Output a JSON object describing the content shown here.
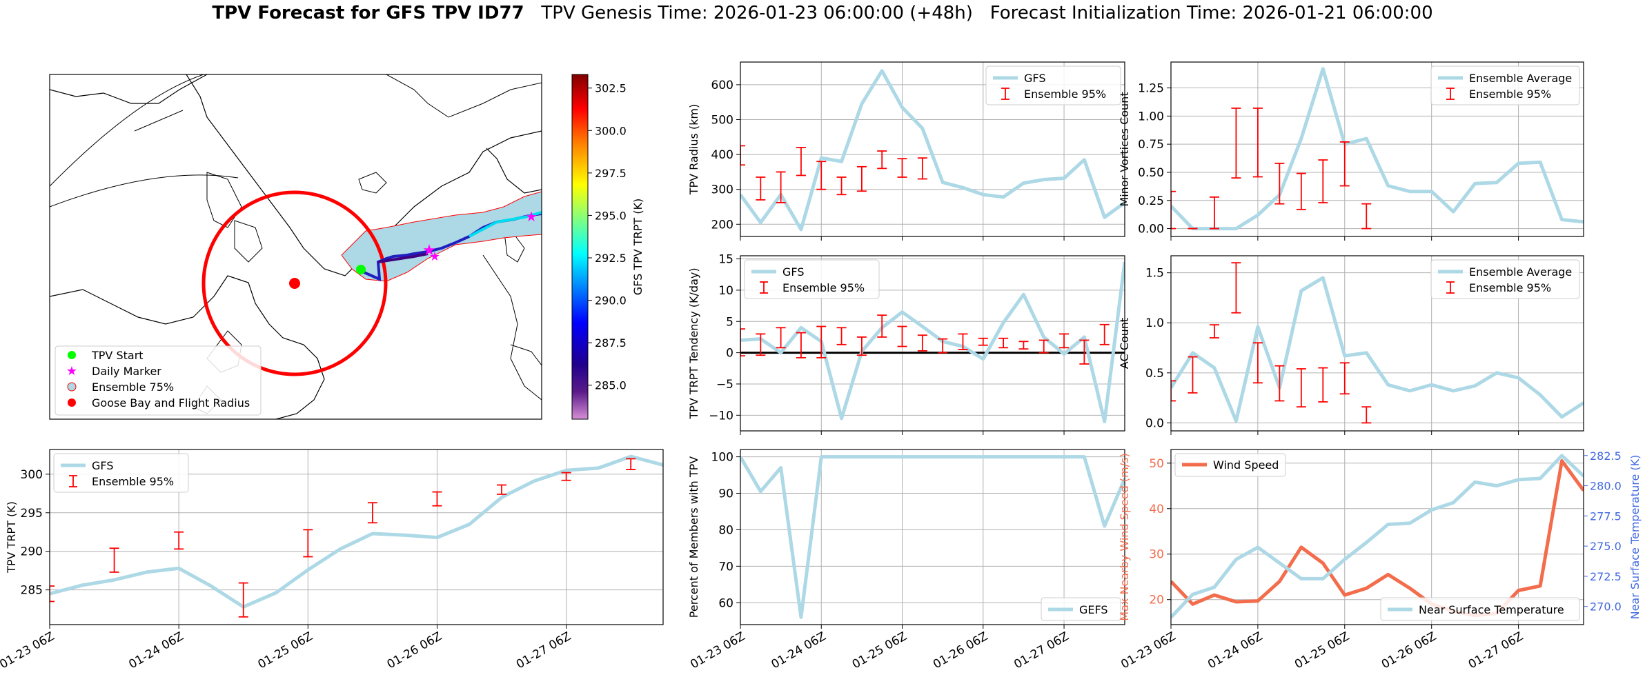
{
  "figure": {
    "title_bold": "TPV Forecast for GFS TPV ID77",
    "title_genesis": "TPV Genesis Time: 2026-01-23 06:00:00 (+48h)",
    "title_init": "Forecast Initialization Time: 2026-01-21 06:00:00"
  },
  "colors": {
    "gfs_line": "#add8e6",
    "error_bar": "#ff0000",
    "wind_line": "#f36c4c",
    "temp_axis": "#4169e1",
    "grid": "#b0b0b0",
    "ocean": "#add8e6",
    "flight_circle": "#ff0000",
    "start_marker": "#00ff00",
    "daily_marker": "#ff00ff"
  },
  "map": {
    "legend": [
      {
        "label": "TPV Start",
        "icon": "green-circle"
      },
      {
        "label": "Daily Marker",
        "icon": "magenta-star"
      },
      {
        "label": "Ensemble 75%",
        "icon": "light-blue-circle"
      },
      {
        "label": "Goose Bay and Flight Radius",
        "icon": "red-circle"
      }
    ],
    "colorbar": {
      "label": "GFS TPV TRPT (K)",
      "min": 283,
      "max": 303.3,
      "ticks": [
        "285.0",
        "287.5",
        "290.0",
        "292.5",
        "295.0",
        "297.5",
        "300.0",
        "302.5"
      ],
      "tick_values": [
        285.0,
        287.5,
        290.0,
        292.5,
        295.0,
        297.5,
        300.0,
        302.5
      ]
    }
  },
  "chart_data": [
    {
      "id": "trpt",
      "type": "line",
      "ylabel": "TPV TRPT (K)",
      "xlim": [
        0,
        4.75
      ],
      "ylim": [
        280.5,
        303.2
      ],
      "yticks": [
        285,
        290,
        295,
        300
      ],
      "ytick_labels": [
        "285",
        "290",
        "295",
        "300"
      ],
      "xticks": [
        0,
        1,
        2,
        3,
        4
      ],
      "xtick_labels": [
        "01-23 06Z",
        "01-24 06Z",
        "01-25 06Z",
        "01-26 06Z",
        "01-27 06Z"
      ],
      "legend": [
        "GFS",
        "Ensemble 95%"
      ],
      "series": [
        {
          "name": "GFS",
          "x": [
            0,
            0.25,
            0.5,
            0.75,
            1,
            1.25,
            1.5,
            1.75,
            2,
            2.25,
            2.5,
            2.75,
            3,
            3.25,
            3.5,
            3.75,
            4,
            4.25,
            4.5,
            4.75
          ],
          "values": [
            284.5,
            285.6,
            286.3,
            287.3,
            287.8,
            285.5,
            282.8,
            284.6,
            287.6,
            290.3,
            292.3,
            292.1,
            291.8,
            293.5,
            297.0,
            299.1,
            300.5,
            300.8,
            302.3,
            301.2
          ]
        }
      ],
      "errorbars": [
        {
          "x": 0,
          "low": 283.5,
          "high": 285.5
        },
        {
          "x": 0.5,
          "low": 287.3,
          "high": 290.4
        },
        {
          "x": 1,
          "low": 290.3,
          "high": 292.5
        },
        {
          "x": 1.5,
          "low": 281.5,
          "high": 285.9
        },
        {
          "x": 2,
          "low": 289.3,
          "high": 292.8
        },
        {
          "x": 2.5,
          "low": 293.7,
          "high": 296.3
        },
        {
          "x": 3,
          "low": 295.9,
          "high": 297.7
        },
        {
          "x": 3.5,
          "low": 297.4,
          "high": 298.6
        },
        {
          "x": 4,
          "low": 299.2,
          "high": 300.2
        },
        {
          "x": 4.5,
          "low": 300.6,
          "high": 302.0
        }
      ]
    },
    {
      "id": "radius",
      "type": "line",
      "ylabel": "TPV Radius (km)",
      "xlim": [
        0,
        4.75
      ],
      "ylim": [
        165,
        665
      ],
      "yticks": [
        200,
        300,
        400,
        500,
        600
      ],
      "ytick_labels": [
        "200",
        "300",
        "400",
        "500",
        "600"
      ],
      "legend": [
        "GFS",
        "Ensemble 95%"
      ],
      "series": [
        {
          "name": "GFS",
          "x": [
            0,
            0.25,
            0.5,
            0.75,
            1,
            1.25,
            1.5,
            1.75,
            2,
            2.25,
            2.5,
            2.75,
            3,
            3.25,
            3.5,
            3.75,
            4,
            4.25,
            4.5,
            4.75
          ],
          "values": [
            285,
            205,
            285,
            185,
            390,
            380,
            545,
            640,
            535,
            475,
            320,
            305,
            285,
            278,
            318,
            328,
            332,
            385,
            220,
            262
          ]
        }
      ],
      "errorbars": [
        {
          "x": 0,
          "low": 370,
          "high": 425
        },
        {
          "x": 0.25,
          "low": 270,
          "high": 335
        },
        {
          "x": 0.5,
          "low": 262,
          "high": 350
        },
        {
          "x": 0.75,
          "low": 340,
          "high": 420
        },
        {
          "x": 1,
          "low": 300,
          "high": 380
        },
        {
          "x": 1.25,
          "low": 285,
          "high": 335
        },
        {
          "x": 1.5,
          "low": 295,
          "high": 365
        },
        {
          "x": 1.75,
          "low": 360,
          "high": 410
        },
        {
          "x": 2,
          "low": 335,
          "high": 388
        },
        {
          "x": 2.25,
          "low": 330,
          "high": 390
        }
      ]
    },
    {
      "id": "minor",
      "type": "line",
      "ylabel": "Minor Vortices Count",
      "xlim": [
        0,
        4.75
      ],
      "ylim": [
        -0.07,
        1.48
      ],
      "yticks": [
        0.0,
        0.25,
        0.5,
        0.75,
        1.0,
        1.25
      ],
      "ytick_labels": [
        "0.00",
        "0.25",
        "0.50",
        "0.75",
        "1.00",
        "1.25"
      ],
      "legend": [
        "Ensemble Average",
        "Ensemble 95%"
      ],
      "series": [
        {
          "name": "Ensemble Average",
          "x": [
            0,
            0.25,
            0.5,
            0.75,
            1,
            1.25,
            1.5,
            1.75,
            2,
            2.25,
            2.5,
            2.75,
            3,
            3.25,
            3.5,
            3.75,
            4,
            4.25,
            4.5,
            4.75
          ],
          "values": [
            0.2,
            0.0,
            0.0,
            0.0,
            0.12,
            0.3,
            0.8,
            1.42,
            0.75,
            0.8,
            0.38,
            0.33,
            0.33,
            0.15,
            0.4,
            0.41,
            0.58,
            0.59,
            0.08,
            0.06
          ]
        }
      ],
      "errorbars": [
        {
          "x": 0,
          "low": 0.0,
          "high": 0.33
        },
        {
          "x": 0.25,
          "low": 0.0,
          "high": 0.0
        },
        {
          "x": 0.5,
          "low": 0.0,
          "high": 0.28
        },
        {
          "x": 0.75,
          "low": 0.45,
          "high": 1.07
        },
        {
          "x": 1,
          "low": 0.46,
          "high": 1.07
        },
        {
          "x": 1.25,
          "low": 0.22,
          "high": 0.58
        },
        {
          "x": 1.5,
          "low": 0.17,
          "high": 0.49
        },
        {
          "x": 1.75,
          "low": 0.23,
          "high": 0.61
        },
        {
          "x": 2,
          "low": 0.38,
          "high": 0.77
        },
        {
          "x": 2.25,
          "low": 0.0,
          "high": 0.22
        }
      ]
    },
    {
      "id": "tendency",
      "type": "line",
      "ylabel": "TPV TRPT Tendency (K/day)",
      "xlim": [
        0,
        4.75
      ],
      "ylim": [
        -12.5,
        15.5
      ],
      "yticks": [
        -10,
        -5,
        0,
        5,
        10,
        15
      ],
      "ytick_labels": [
        "−10",
        "−5",
        "0",
        "5",
        "10",
        "15"
      ],
      "legend": [
        "GFS",
        "Ensemble 95%"
      ],
      "series": [
        {
          "name": "GFS",
          "x": [
            0,
            0.25,
            0.5,
            0.75,
            1,
            1.25,
            1.5,
            1.75,
            2,
            2.25,
            2.5,
            2.75,
            3,
            3.25,
            3.5,
            3.75,
            4,
            4.25,
            4.5,
            4.75
          ],
          "values": [
            2,
            2.2,
            0,
            4,
            1.8,
            -10.5,
            0.2,
            4,
            6.5,
            4.2,
            1.8,
            1,
            -1,
            4.8,
            9.3,
            2.5,
            -0.2,
            2.5,
            -11,
            14.5
          ]
        }
      ],
      "errorbars": [
        {
          "x": 0,
          "low": -0.5,
          "high": 3.8
        },
        {
          "x": 0.25,
          "low": -0.4,
          "high": 3.0
        },
        {
          "x": 0.5,
          "low": 0.8,
          "high": 4.0
        },
        {
          "x": 0.75,
          "low": -0.8,
          "high": 3.2
        },
        {
          "x": 1,
          "low": -0.8,
          "high": 4.2
        },
        {
          "x": 1.25,
          "low": 1.3,
          "high": 4.0
        },
        {
          "x": 1.5,
          "low": -0.4,
          "high": 2.5
        },
        {
          "x": 1.75,
          "low": 2.5,
          "high": 6.0
        },
        {
          "x": 2,
          "low": 1.0,
          "high": 4.2
        },
        {
          "x": 2.25,
          "low": 0.3,
          "high": 2.8
        },
        {
          "x": 2.5,
          "low": 0.0,
          "high": 2.2
        },
        {
          "x": 2.75,
          "low": 0.5,
          "high": 3.0
        },
        {
          "x": 3,
          "low": 1.2,
          "high": 2.3
        },
        {
          "x": 3.25,
          "low": 0.8,
          "high": 2.3
        },
        {
          "x": 3.5,
          "low": 0.6,
          "high": 1.8
        },
        {
          "x": 3.75,
          "low": 0.0,
          "high": 2.0
        },
        {
          "x": 4,
          "low": 0.8,
          "high": 3.0
        },
        {
          "x": 4.25,
          "low": -1.8,
          "high": 2.0
        },
        {
          "x": 4.5,
          "low": 1.3,
          "high": 4.5
        }
      ],
      "hline": 0
    },
    {
      "id": "ac",
      "type": "line",
      "ylabel": "AC Count",
      "xlim": [
        0,
        4.75
      ],
      "ylim": [
        -0.08,
        1.67
      ],
      "yticks": [
        0.0,
        0.5,
        1.0,
        1.5
      ],
      "ytick_labels": [
        "0.0",
        "0.5",
        "1.0",
        "1.5"
      ],
      "legend": [
        "Ensemble Average",
        "Ensemble 95%"
      ],
      "series": [
        {
          "name": "Ensemble Average",
          "x": [
            0,
            0.25,
            0.5,
            0.75,
            1,
            1.25,
            1.5,
            1.75,
            2,
            2.25,
            2.5,
            2.75,
            3,
            3.25,
            3.5,
            3.75,
            4,
            4.25,
            4.5,
            4.75
          ],
          "values": [
            0.35,
            0.7,
            0.55,
            0.02,
            0.96,
            0.35,
            1.32,
            1.45,
            0.67,
            0.7,
            0.38,
            0.32,
            0.38,
            0.32,
            0.37,
            0.5,
            0.45,
            0.28,
            0.06,
            0.2
          ]
        }
      ],
      "errorbars": [
        {
          "x": 0,
          "low": 0.22,
          "high": 0.42
        },
        {
          "x": 0.25,
          "low": 0.3,
          "high": 0.66
        },
        {
          "x": 0.5,
          "low": 0.85,
          "high": 0.98
        },
        {
          "x": 0.75,
          "low": 1.1,
          "high": 1.6
        },
        {
          "x": 1,
          "low": 0.4,
          "high": 0.8
        },
        {
          "x": 1.25,
          "low": 0.22,
          "high": 0.57
        },
        {
          "x": 1.5,
          "low": 0.16,
          "high": 0.54
        },
        {
          "x": 1.75,
          "low": 0.21,
          "high": 0.55
        },
        {
          "x": 2,
          "low": 0.29,
          "high": 0.6
        },
        {
          "x": 2.25,
          "low": 0.0,
          "high": 0.16
        }
      ]
    },
    {
      "id": "members",
      "type": "line",
      "ylabel": "Percent of Members with TPV",
      "xlim": [
        0,
        4.75
      ],
      "ylim": [
        54,
        102
      ],
      "yticks": [
        60,
        70,
        80,
        90,
        100
      ],
      "ytick_labels": [
        "60",
        "70",
        "80",
        "90",
        "100"
      ],
      "xticks": [
        0,
        1,
        2,
        3,
        4
      ],
      "xtick_labels": [
        "01-23 06Z",
        "01-24 06Z",
        "01-25 06Z",
        "01-26 06Z",
        "01-27 06Z"
      ],
      "legend": [
        "GEFS"
      ],
      "series": [
        {
          "name": "GEFS",
          "x": [
            0,
            0.25,
            0.5,
            0.75,
            1,
            1.25,
            1.5,
            1.75,
            2,
            2.25,
            2.5,
            2.75,
            3,
            3.25,
            3.5,
            3.75,
            4,
            4.25,
            4.5,
            4.75
          ],
          "values": [
            100,
            90.5,
            97,
            56,
            100,
            100,
            100,
            100,
            100,
            100,
            100,
            100,
            100,
            100,
            100,
            100,
            100,
            100,
            81,
            94
          ]
        }
      ]
    },
    {
      "id": "wind",
      "type": "line",
      "ylabel": "Max Nearby Wind Speed (m/s)",
      "y2label": "Near Surface Temperature (K)",
      "xlim": [
        0,
        4.75
      ],
      "ylim": [
        14.5,
        53
      ],
      "yticks": [
        20,
        30,
        40,
        50
      ],
      "ytick_labels": [
        "20",
        "30",
        "40",
        "50"
      ],
      "y2lim": [
        268.5,
        283
      ],
      "y2ticks": [
        270.0,
        272.5,
        275.0,
        277.5,
        280.0,
        282.5
      ],
      "y2tick_labels": [
        "270.0",
        "272.5",
        "275.0",
        "277.5",
        "280.0",
        "282.5"
      ],
      "xticks": [
        0,
        1,
        2,
        3,
        4
      ],
      "xtick_labels": [
        "01-23 06Z",
        "01-24 06Z",
        "01-25 06Z",
        "01-26 06Z",
        "01-27 06Z"
      ],
      "legend": [
        "Wind Speed",
        "Near Surface Temperature"
      ],
      "series": [
        {
          "name": "Wind Speed",
          "x": [
            0,
            0.25,
            0.5,
            0.75,
            1,
            1.25,
            1.5,
            1.75,
            2,
            2.25,
            2.5,
            2.75,
            3,
            3.25,
            3.5,
            3.75,
            4,
            4.25,
            4.5,
            4.75
          ],
          "values": [
            24,
            19,
            21,
            19.5,
            19.7,
            24,
            31.5,
            28,
            21,
            22.5,
            25.5,
            22.5,
            19,
            17.5,
            16.5,
            17,
            22,
            23,
            50.5,
            44
          ]
        },
        {
          "name": "Near Surface Temperature",
          "x": [
            0,
            0.25,
            0.5,
            0.75,
            1,
            1.25,
            1.5,
            1.75,
            2,
            2.25,
            2.5,
            2.75,
            3,
            3.25,
            3.5,
            3.75,
            4,
            4.25,
            4.5,
            4.75
          ],
          "values": [
            269.1,
            271.0,
            271.6,
            273.9,
            274.9,
            273.6,
            272.3,
            272.3,
            273.9,
            275.3,
            276.8,
            276.9,
            278.0,
            278.6,
            280.3,
            280.0,
            280.5,
            280.6,
            282.5,
            280.8
          ]
        }
      ]
    }
  ]
}
